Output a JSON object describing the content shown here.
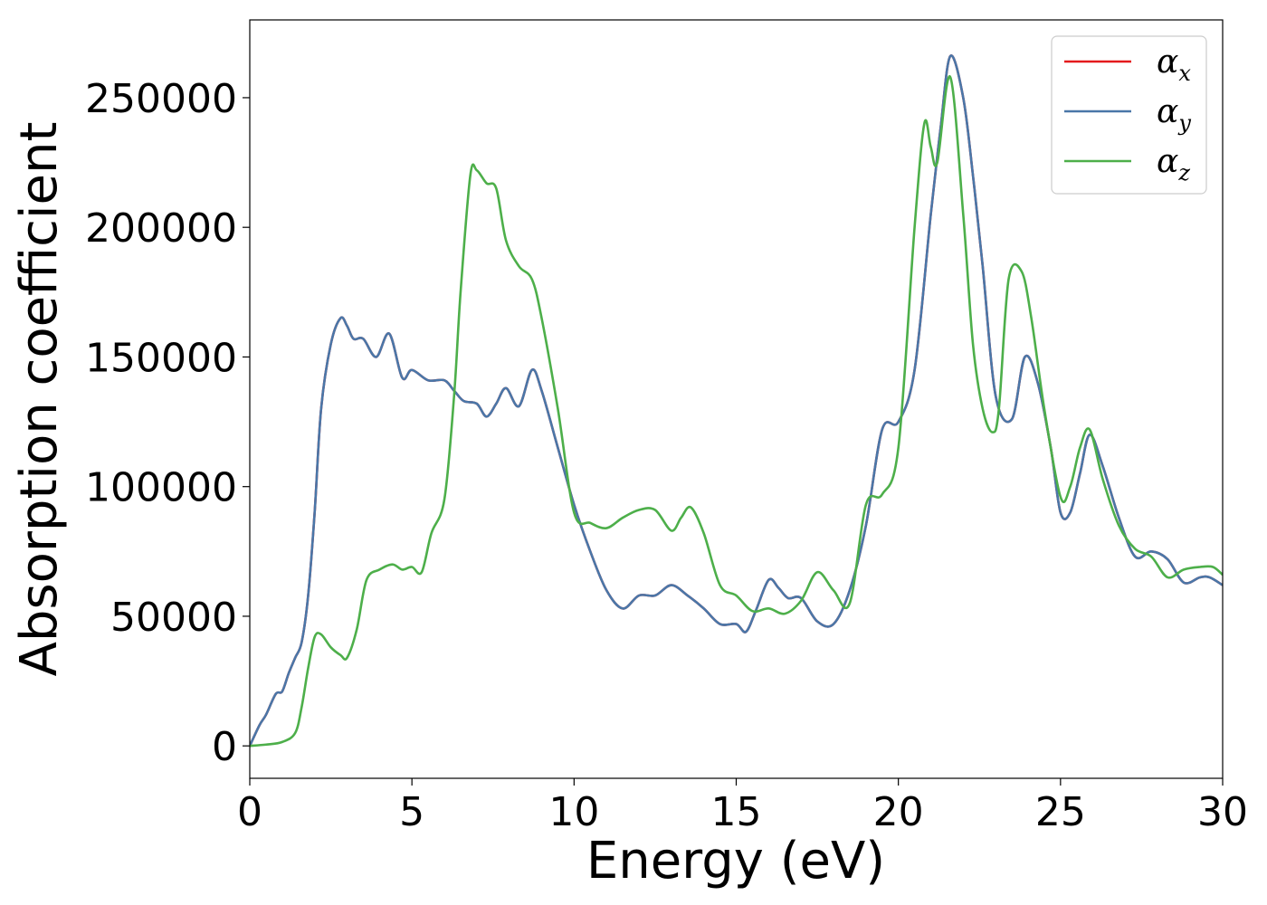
{
  "chart_data": {
    "type": "line",
    "title": "",
    "xlabel": "Energy (eV)",
    "ylabel": "Absorption coefficient",
    "xlim": [
      0,
      30
    ],
    "ylim": [
      -12500,
      280000
    ],
    "xticks": [
      0,
      5,
      10,
      15,
      20,
      25,
      30
    ],
    "xtick_labels": [
      "0",
      "5",
      "10",
      "15",
      "20",
      "25",
      "30"
    ],
    "yticks": [
      0,
      50000,
      100000,
      150000,
      200000,
      250000
    ],
    "ytick_labels": [
      "0",
      "50000",
      "100000",
      "150000",
      "200000",
      "250000"
    ],
    "grid": false,
    "legend_position": "top-right",
    "series": [
      {
        "name": "α_x",
        "symbol": "α",
        "subscript": "x",
        "color": "#e41a1c",
        "x": [
          0,
          0.3,
          0.5,
          0.8,
          1.0,
          1.2,
          1.4,
          1.6,
          1.8,
          2.0,
          2.2,
          2.5,
          2.8,
          3.0,
          3.2,
          3.5,
          3.9,
          4.3,
          4.7,
          5.0,
          5.5,
          6.0,
          6.3,
          6.6,
          7.0,
          7.3,
          7.6,
          7.9,
          8.3,
          8.7,
          9.0,
          9.5,
          10.0,
          10.5,
          11.0,
          11.5,
          12.0,
          12.5,
          13.0,
          13.5,
          14.0,
          14.5,
          15.0,
          15.3,
          15.6,
          16.0,
          16.3,
          16.6,
          17.0,
          17.5,
          18.0,
          18.5,
          19.0,
          19.5,
          20.0,
          20.5,
          21.0,
          21.3,
          21.6,
          22.0,
          22.3,
          22.6,
          23.0,
          23.5,
          23.9,
          24.3,
          24.7,
          25.0,
          25.3,
          25.6,
          25.9,
          26.3,
          26.8,
          27.3,
          27.8,
          28.3,
          28.8,
          29.3,
          29.6,
          30.0
        ],
        "y": [
          0,
          8000,
          12000,
          20000,
          21000,
          28000,
          34000,
          40000,
          58000,
          90000,
          130000,
          155000,
          165000,
          162000,
          157000,
          157000,
          150000,
          159000,
          142000,
          145000,
          141000,
          141000,
          137000,
          133000,
          132000,
          127000,
          132000,
          138000,
          131000,
          145000,
          137000,
          115000,
          93000,
          75000,
          60000,
          53000,
          58000,
          58000,
          62000,
          58000,
          53000,
          47000,
          47000,
          44000,
          52000,
          64000,
          61000,
          57000,
          57000,
          48000,
          47000,
          60000,
          85000,
          122000,
          125000,
          145000,
          205000,
          238000,
          266000,
          250000,
          220000,
          185000,
          135000,
          126000,
          150000,
          140000,
          115000,
          90000,
          90000,
          105000,
          120000,
          108000,
          88000,
          73000,
          75000,
          72000,
          63000,
          65000,
          65000,
          62000
        ]
      },
      {
        "name": "α_y",
        "symbol": "α",
        "subscript": "y",
        "color": "#4a77a8",
        "x": [
          0,
          0.3,
          0.5,
          0.8,
          1.0,
          1.2,
          1.4,
          1.6,
          1.8,
          2.0,
          2.2,
          2.5,
          2.8,
          3.0,
          3.2,
          3.5,
          3.9,
          4.3,
          4.7,
          5.0,
          5.5,
          6.0,
          6.3,
          6.6,
          7.0,
          7.3,
          7.6,
          7.9,
          8.3,
          8.7,
          9.0,
          9.5,
          10.0,
          10.5,
          11.0,
          11.5,
          12.0,
          12.5,
          13.0,
          13.5,
          14.0,
          14.5,
          15.0,
          15.3,
          15.6,
          16.0,
          16.3,
          16.6,
          17.0,
          17.5,
          18.0,
          18.5,
          19.0,
          19.5,
          20.0,
          20.5,
          21.0,
          21.3,
          21.6,
          22.0,
          22.3,
          22.6,
          23.0,
          23.5,
          23.9,
          24.3,
          24.7,
          25.0,
          25.3,
          25.6,
          25.9,
          26.3,
          26.8,
          27.3,
          27.8,
          28.3,
          28.8,
          29.3,
          29.6,
          30.0
        ],
        "y": [
          0,
          8000,
          12000,
          20000,
          21000,
          28000,
          34000,
          40000,
          58000,
          90000,
          130000,
          155000,
          165000,
          162000,
          157000,
          157000,
          150000,
          159000,
          142000,
          145000,
          141000,
          141000,
          137000,
          133000,
          132000,
          127000,
          132000,
          138000,
          131000,
          145000,
          137000,
          115000,
          93000,
          75000,
          60000,
          53000,
          58000,
          58000,
          62000,
          58000,
          53000,
          47000,
          47000,
          44000,
          52000,
          64000,
          61000,
          57000,
          57000,
          48000,
          47000,
          60000,
          85000,
          122000,
          125000,
          145000,
          205000,
          238000,
          266000,
          250000,
          220000,
          185000,
          135000,
          126000,
          150000,
          140000,
          115000,
          90000,
          90000,
          105000,
          120000,
          108000,
          88000,
          73000,
          75000,
          72000,
          63000,
          65000,
          65000,
          62000
        ]
      },
      {
        "name": "α_z",
        "symbol": "α",
        "subscript": "z",
        "color": "#4daf4a",
        "x": [
          0,
          0.5,
          1.0,
          1.4,
          1.6,
          1.8,
          2.0,
          2.2,
          2.5,
          2.8,
          3.0,
          3.3,
          3.6,
          4.0,
          4.4,
          4.7,
          5.0,
          5.3,
          5.6,
          6.0,
          6.3,
          6.5,
          6.8,
          7.0,
          7.3,
          7.6,
          7.9,
          8.3,
          8.7,
          9.0,
          9.5,
          10.0,
          10.5,
          11.0,
          11.5,
          12.0,
          12.5,
          13.0,
          13.3,
          13.6,
          14.0,
          14.5,
          15.0,
          15.5,
          16.0,
          16.5,
          17.0,
          17.5,
          18.0,
          18.5,
          19.0,
          19.5,
          20.0,
          20.5,
          20.8,
          21.0,
          21.2,
          21.6,
          22.0,
          22.3,
          22.6,
          22.9,
          23.1,
          23.4,
          23.8,
          24.1,
          24.5,
          25.0,
          25.3,
          25.6,
          25.9,
          26.3,
          26.8,
          27.3,
          27.8,
          28.3,
          28.8,
          29.3,
          29.7,
          30.0
        ],
        "y": [
          0,
          500,
          1500,
          5000,
          15000,
          30000,
          42000,
          43000,
          38000,
          35000,
          34000,
          45000,
          64000,
          68000,
          70000,
          68000,
          69000,
          67000,
          82000,
          95000,
          135000,
          175000,
          220000,
          222000,
          217000,
          215000,
          195000,
          185000,
          180000,
          165000,
          130000,
          90000,
          86000,
          84000,
          88000,
          91000,
          91000,
          83000,
          88000,
          92000,
          82000,
          62000,
          58000,
          52000,
          53000,
          51000,
          56000,
          67000,
          60000,
          55000,
          93000,
          97000,
          115000,
          200000,
          240000,
          231000,
          225000,
          258000,
          205000,
          155000,
          130000,
          121000,
          130000,
          180000,
          183000,
          165000,
          130000,
          96000,
          100000,
          115000,
          122000,
          103000,
          85000,
          76000,
          73000,
          65000,
          68000,
          69000,
          69000,
          66000
        ]
      }
    ]
  }
}
